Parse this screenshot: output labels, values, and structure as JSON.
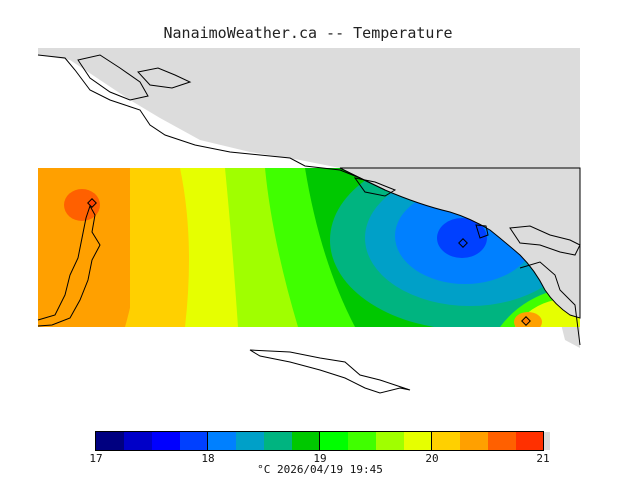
{
  "title": "NanaimoWeather.ca -- Temperature",
  "map": {
    "land_color": "#dcdcdc",
    "coast_color": "#000000",
    "stations": [
      {
        "name": "west-station",
        "value": 20.4
      },
      {
        "name": "nanaimo-station",
        "value": 17.8
      },
      {
        "name": "southeast-station",
        "value": 20.6
      }
    ]
  },
  "colorbar": {
    "colors": [
      "#000080",
      "#0000c8",
      "#0000ff",
      "#0040ff",
      "#0080ff",
      "#00a0c8",
      "#00b480",
      "#00c800",
      "#00ff00",
      "#40ff00",
      "#a0ff00",
      "#e6ff00",
      "#ffd000",
      "#ffa000",
      "#ff6000",
      "#ff3000",
      "#ff0000"
    ],
    "ticks": [
      "17",
      "18",
      "19",
      "20",
      "21"
    ]
  },
  "caption": "°C  2026/04/19 19:45"
}
